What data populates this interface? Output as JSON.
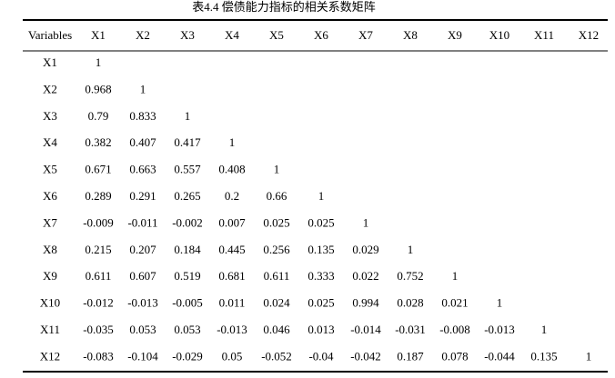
{
  "title": "表4.4  偿债能力指标的相关系数矩阵",
  "table": {
    "header": [
      "Variables",
      "X1",
      "X2",
      "X3",
      "X4",
      "X5",
      "X6",
      "X7",
      "X8",
      "X9",
      "X10",
      "X11",
      "X12"
    ],
    "rows": [
      [
        "X1",
        "1"
      ],
      [
        "X2",
        "0.968",
        "1"
      ],
      [
        "X3",
        "0.79",
        "0.833",
        "1"
      ],
      [
        "X4",
        "0.382",
        "0.407",
        "0.417",
        "1"
      ],
      [
        "X5",
        "0.671",
        "0.663",
        "0.557",
        "0.408",
        "1"
      ],
      [
        "X6",
        "0.289",
        "0.291",
        "0.265",
        "0.2",
        "0.66",
        "1"
      ],
      [
        "X7",
        "-0.009",
        "-0.011",
        "-0.002",
        "0.007",
        "0.025",
        "0.025",
        "1"
      ],
      [
        "X8",
        "0.215",
        "0.207",
        "0.184",
        "0.445",
        "0.256",
        "0.135",
        "0.029",
        "1"
      ],
      [
        "X9",
        "0.611",
        "0.607",
        "0.519",
        "0.681",
        "0.611",
        "0.333",
        "0.022",
        "0.752",
        "1"
      ],
      [
        "X10",
        "-0.012",
        "-0.013",
        "-0.005",
        "0.011",
        "0.024",
        "0.025",
        "0.994",
        "0.028",
        "0.021",
        "1"
      ],
      [
        "X11",
        "-0.035",
        "0.053",
        "0.053",
        "-0.013",
        "0.046",
        "0.013",
        "-0.014",
        "-0.031",
        "-0.008",
        "-0.013",
        "1"
      ],
      [
        "X12",
        "-0.083",
        "-0.104",
        "-0.029",
        "0.05",
        "-0.052",
        "-0.04",
        "-0.042",
        "0.187",
        "0.078",
        "-0.044",
        "0.135",
        "1"
      ]
    ]
  }
}
